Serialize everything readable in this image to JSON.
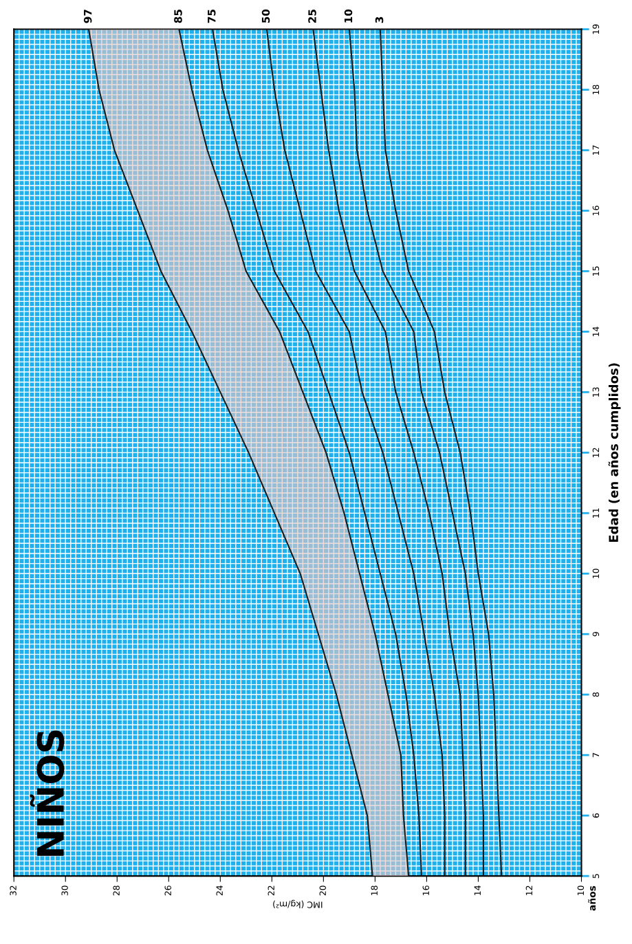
{
  "chart_data": {
    "type": "line",
    "orientation": "horizontal",
    "title": "NIÑOS",
    "xlabel": "IMC (kg/m²)",
    "ylabel": "Edad (en años cumplidos)",
    "annotations": [
      "años"
    ],
    "x": [
      5,
      6,
      7,
      8,
      9,
      10,
      11,
      12,
      13,
      14,
      15,
      16,
      17,
      18,
      19
    ],
    "xlim": [
      32,
      10
    ],
    "xticks": [
      32,
      30,
      28,
      26,
      24,
      22,
      20,
      18,
      16,
      14,
      12,
      10
    ],
    "ylim": [
      5,
      19
    ],
    "yticks": [
      5,
      6,
      7,
      8,
      9,
      10,
      11,
      12,
      13,
      14,
      15,
      16,
      17,
      18,
      19
    ],
    "grid": true,
    "legend": false,
    "marker": "none",
    "line_style": "solid",
    "series": [
      {
        "name": "97",
        "color": "#1a1a1a",
        "values": [
          18.1,
          18.3,
          18.9,
          19.5,
          20.2,
          20.9,
          21.9,
          22.9,
          24.0,
          25.1,
          26.3,
          27.2,
          28.1,
          28.7,
          29.1
        ],
        "lower": [
          16.7,
          16.9,
          17.0,
          17.5,
          18.0,
          18.6,
          19.2,
          19.9,
          20.8,
          21.7,
          23.0,
          23.7,
          24.5,
          25.1,
          25.6
        ],
        "upper": [
          18.1,
          18.3,
          18.9,
          19.5,
          20.2,
          20.9,
          21.9,
          22.9,
          24.0,
          25.1,
          26.3,
          27.2,
          28.1,
          28.7,
          29.1
        ]
      },
      {
        "name": "85",
        "color": "#1a1a1a",
        "values": [
          16.7,
          16.9,
          17.0,
          17.5,
          18.0,
          18.6,
          19.2,
          19.9,
          20.8,
          21.7,
          23.0,
          23.7,
          24.5,
          25.1,
          25.6
        ]
      },
      {
        "name": "75",
        "color": "#1a1a1a",
        "values": [
          16.2,
          16.3,
          16.5,
          16.8,
          17.2,
          17.8,
          18.4,
          19.0,
          19.8,
          20.6,
          21.9,
          22.6,
          23.3,
          23.9,
          24.3
        ]
      },
      {
        "name": "50",
        "color": "#1a1a1a",
        "values": [
          15.3,
          15.3,
          15.4,
          15.7,
          16.1,
          16.5,
          17.1,
          17.7,
          18.5,
          19.0,
          20.3,
          20.9,
          21.5,
          21.9,
          22.2
        ]
      },
      {
        "name": "25",
        "color": "#1a1a1a",
        "values": [
          14.5,
          14.5,
          14.6,
          14.7,
          15.1,
          15.4,
          15.9,
          16.5,
          17.2,
          17.6,
          18.8,
          19.4,
          19.8,
          20.1,
          20.4
        ]
      },
      {
        "name": "10",
        "color": "#1a1a1a",
        "values": [
          13.8,
          13.8,
          13.9,
          14.0,
          14.2,
          14.5,
          15.0,
          15.5,
          16.2,
          16.5,
          17.7,
          18.3,
          18.7,
          18.8,
          19.0
        ]
      },
      {
        "name": "3",
        "color": "#1a1a1a",
        "values": [
          13.1,
          13.2,
          13.3,
          13.4,
          13.6,
          14.0,
          14.3,
          14.7,
          15.3,
          15.7,
          16.7,
          17.2,
          17.6,
          17.7,
          17.8
        ]
      }
    ]
  }
}
